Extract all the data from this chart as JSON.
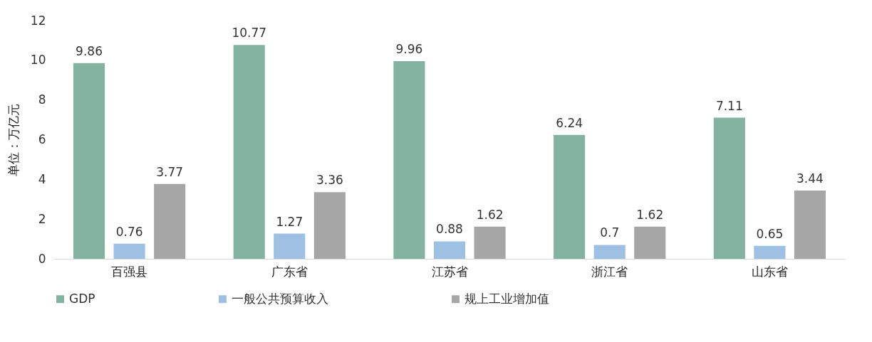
{
  "chart_data": {
    "type": "bar",
    "ylabel": "单位：万亿元",
    "categories": [
      "百强县",
      "广东省",
      "江苏省",
      "浙江省",
      "山东省"
    ],
    "series": [
      {
        "name": "GDP",
        "color": "#84b2a0",
        "values": [
          9.86,
          10.77,
          9.96,
          6.24,
          7.11
        ]
      },
      {
        "name": "一般公共预算收入",
        "color": "#9ec1e3",
        "values": [
          0.76,
          1.27,
          0.88,
          0.7,
          0.65
        ]
      },
      {
        "name": "规上工业增加值",
        "color": "#a6a6a6",
        "values": [
          3.77,
          3.36,
          1.62,
          1.62,
          3.44
        ]
      }
    ],
    "ylim": [
      0,
      12
    ],
    "yticks": [
      0,
      2,
      4,
      6,
      8,
      10,
      12
    ],
    "grid": false,
    "legend": "bottom",
    "data_labels": true
  }
}
